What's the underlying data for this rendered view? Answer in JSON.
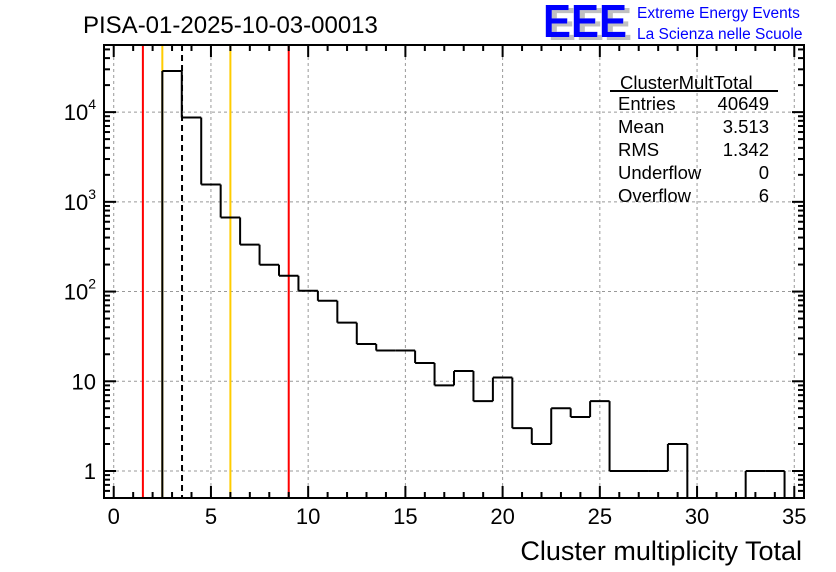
{
  "chart_data": {
    "type": "bar",
    "style": "step-histogram",
    "title": "PISA-01-2025-10-03-00013",
    "xlabel": "Cluster multiplicity Total",
    "ylabel": "",
    "xlim": [
      -0.5,
      35.5
    ],
    "ylim": [
      0.5,
      56000
    ],
    "yscale": "log",
    "grid": true,
    "x_ticks": [
      0,
      5,
      10,
      15,
      20,
      25,
      30,
      35
    ],
    "y_ticks": [
      {
        "value": 1,
        "label": "1"
      },
      {
        "value": 10,
        "label": "10"
      },
      {
        "value": 100,
        "label": "10",
        "exp": "2"
      },
      {
        "value": 1000,
        "label": "10",
        "exp": "3"
      },
      {
        "value": 10000,
        "label": "10",
        "exp": "4"
      }
    ],
    "bins": [
      0,
      1,
      2,
      3,
      4,
      5,
      6,
      7,
      8,
      9,
      10,
      11,
      12,
      13,
      14,
      15,
      16,
      17,
      18,
      19,
      20,
      21,
      22,
      23,
      24,
      25,
      26,
      27,
      28,
      29,
      30,
      31,
      32,
      33,
      34,
      35
    ],
    "values": [
      0,
      0,
      0,
      28700,
      8700,
      1560,
      670,
      333,
      199,
      150,
      102,
      79,
      45,
      26,
      22,
      22,
      16,
      9,
      13,
      6,
      11,
      3,
      2,
      5,
      4,
      6,
      1,
      1,
      1,
      2,
      0,
      0,
      0,
      1,
      1,
      0
    ],
    "markers": [
      {
        "x": 1.5,
        "color": "#ff0000",
        "style": "solid"
      },
      {
        "x": 2.5,
        "color": "#ffcc00",
        "style": "solid"
      },
      {
        "x": 3.513,
        "color": "#000000",
        "style": "dashed"
      },
      {
        "x": 6.0,
        "color": "#ffcc00",
        "style": "solid"
      },
      {
        "x": 9.0,
        "color": "#ff0000",
        "style": "solid"
      }
    ],
    "stats": {
      "name": "ClusterMultTotal",
      "rows": [
        {
          "label": "Entries",
          "value": "40649"
        },
        {
          "label": "Mean",
          "value": "3.513"
        },
        {
          "label": "RMS",
          "value": "1.342"
        },
        {
          "label": "Underflow",
          "value": "0"
        },
        {
          "label": "Overflow",
          "value": "6"
        }
      ]
    },
    "legend_placement": "top-right"
  },
  "logo": {
    "mark": "EEE",
    "line1": "Extreme Energy Events",
    "line2": "La Scienza nelle Scuole",
    "color": "#0000ff"
  }
}
